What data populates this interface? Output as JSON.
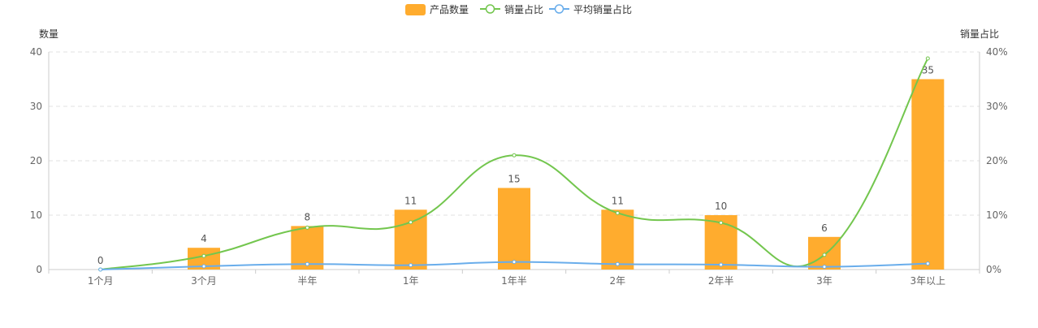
{
  "chart_data": {
    "type": "bar",
    "categories": [
      "1个月",
      "3个月",
      "半年",
      "1年",
      "1年半",
      "2年",
      "2年半",
      "3年",
      "3年以上"
    ],
    "series": [
      {
        "name": "产品数量",
        "type": "bar",
        "axis": "left",
        "values": [
          0,
          4,
          8,
          11,
          15,
          11,
          10,
          6,
          35
        ]
      },
      {
        "name": "销量占比",
        "type": "line",
        "axis": "right",
        "smooth": true,
        "values": [
          0,
          2.5,
          7.7,
          8.7,
          21.0,
          10.4,
          8.6,
          2.7,
          38.8
        ]
      },
      {
        "name": "平均销量占比",
        "type": "line",
        "axis": "right",
        "smooth": true,
        "values": [
          0,
          0.6,
          1.0,
          0.8,
          1.4,
          1.0,
          0.9,
          0.5,
          1.1
        ]
      }
    ],
    "yaxis_left": {
      "name": "数量",
      "min": 0,
      "max": 40,
      "ticks": [
        0,
        10,
        20,
        30,
        40
      ]
    },
    "yaxis_right": {
      "name": "销量占比",
      "min": 0,
      "max": 40,
      "ticks": [
        "0%",
        "10%",
        "20%",
        "30%",
        "40%"
      ]
    },
    "legend": "top-center",
    "grid": "dashed horizontal",
    "colors": {
      "bar": "#FFAC2E",
      "line1": "#73C64E",
      "line2": "#69ADEB"
    }
  }
}
